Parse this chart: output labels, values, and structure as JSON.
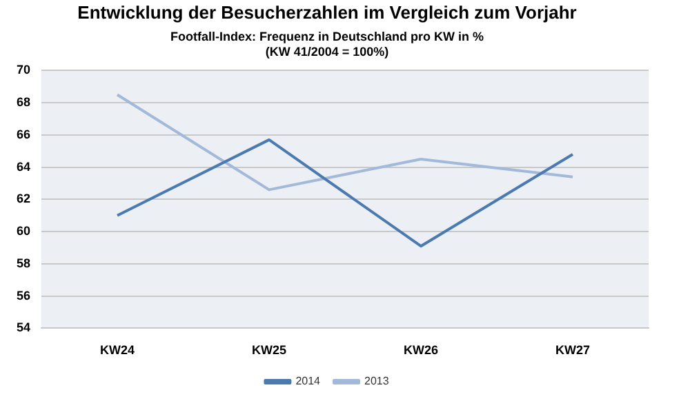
{
  "chart_data": {
    "type": "line",
    "title": "Entwicklung der Besucherzahlen im Vergleich zum Vorjahr",
    "subtitle": "Footfall-Index: Frequenz in Deutschland pro KW in %\n(KW 41/2004 = 100%)",
    "categories": [
      "KW24",
      "KW25",
      "KW26",
      "KW27"
    ],
    "series": [
      {
        "name": "2014",
        "color": "#4a7ab0",
        "values": [
          61.0,
          65.7,
          59.1,
          64.8
        ]
      },
      {
        "name": "2013",
        "color": "#a3b9d9",
        "values": [
          68.5,
          62.6,
          64.5,
          63.4
        ]
      }
    ],
    "ylim": [
      54,
      70
    ],
    "yticks": [
      54,
      56,
      58,
      60,
      62,
      64,
      66,
      68,
      70
    ],
    "grid": "y",
    "legend": "bottom",
    "marker": "none",
    "line_style": "solid"
  }
}
